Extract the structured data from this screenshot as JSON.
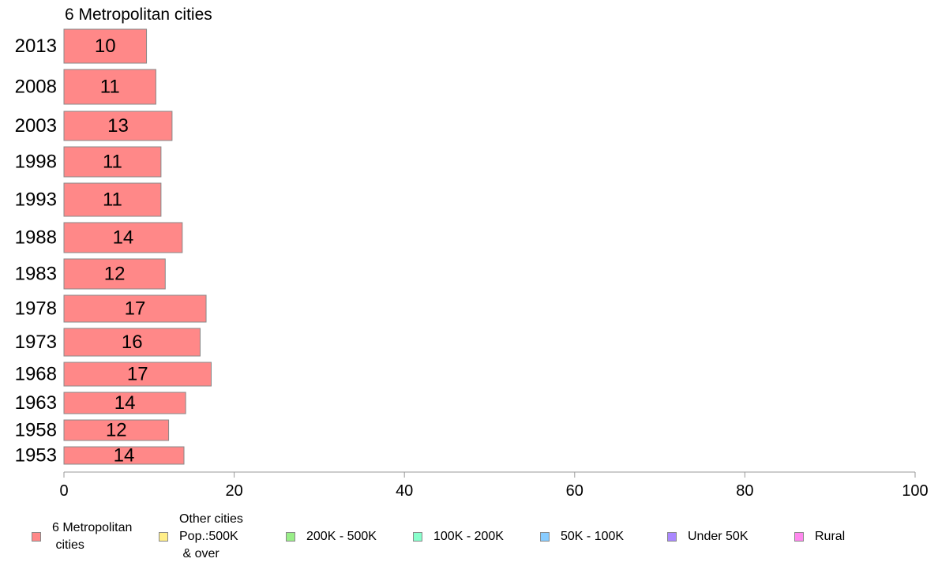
{
  "chart_data": {
    "type": "bar",
    "orientation": "horizontal",
    "title": "6 Metropolitan cities",
    "categories": [
      "2013",
      "2008",
      "2003",
      "1998",
      "1993",
      "1988",
      "1983",
      "1978",
      "1973",
      "1968",
      "1963",
      "1958",
      "1953"
    ],
    "values": [
      10,
      11,
      13,
      11,
      11,
      14,
      12,
      17,
      16,
      17,
      14,
      12,
      14
    ],
    "exact_values": [
      9.7,
      10.8,
      12.7,
      11.4,
      11.4,
      13.9,
      11.9,
      16.7,
      16.0,
      17.3,
      14.3,
      12.3,
      14.1
    ],
    "xlim": [
      0,
      100
    ],
    "xticks": [
      0,
      20,
      40,
      60,
      80,
      100
    ],
    "grid": false,
    "bar_color": "#ff8888",
    "bar_border": "#888888",
    "legend_position": "bottom",
    "legend": [
      {
        "label": "6 Metropolitan\n cities",
        "color": "#ff8888"
      },
      {
        "label": "Other cities\nPop.:500K\n & over",
        "color": "#ffee88"
      },
      {
        "label": "200K - 500K",
        "color": "#99ee88"
      },
      {
        "label": "100K - 200K",
        "color": "#88ffcc"
      },
      {
        "label": "50K - 100K",
        "color": "#88ccff"
      },
      {
        "label": "Under 50K",
        "color": "#aa88ff"
      },
      {
        "label": "Rural",
        "color": "#ff88ee"
      }
    ]
  }
}
